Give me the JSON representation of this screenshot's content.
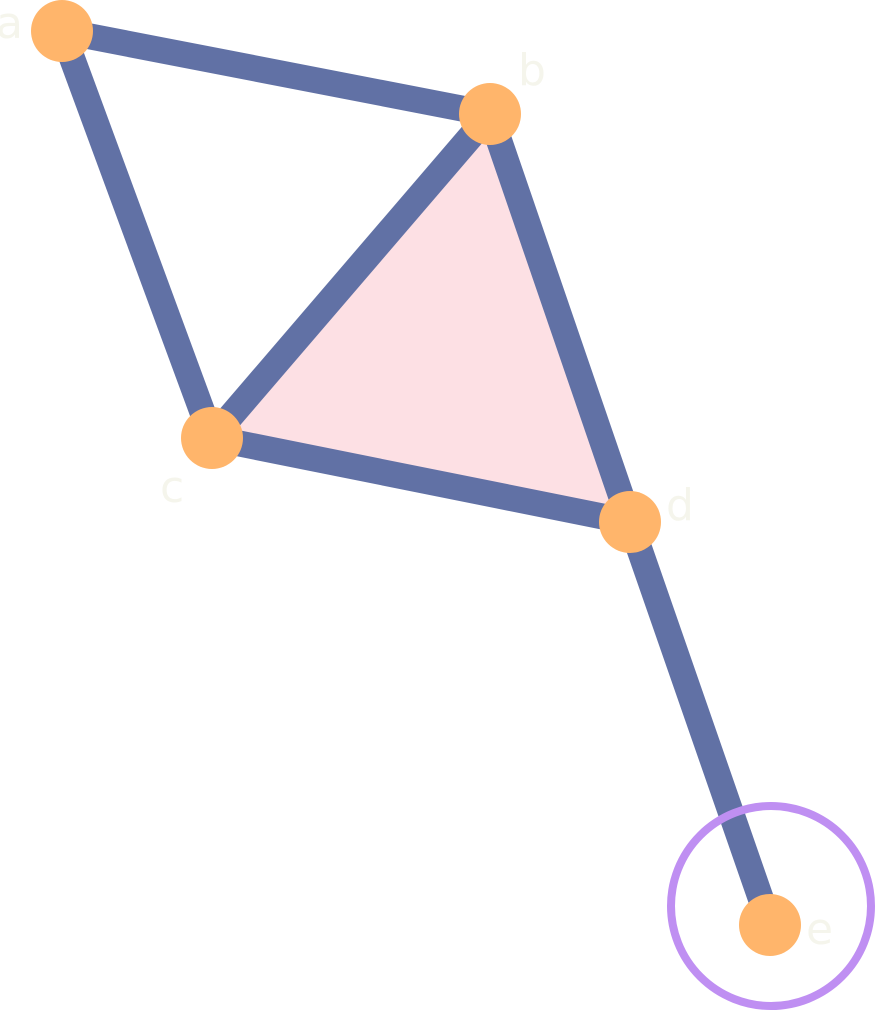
{
  "graph": {
    "nodes": [
      {
        "id": "a",
        "label": "a"
      },
      {
        "id": "b",
        "label": "b"
      },
      {
        "id": "c",
        "label": "c"
      },
      {
        "id": "d",
        "label": "d"
      },
      {
        "id": "e",
        "label": "e"
      }
    ],
    "edges": [
      {
        "from": "a",
        "to": "b"
      },
      {
        "from": "a",
        "to": "c"
      },
      {
        "from": "b",
        "to": "c"
      },
      {
        "from": "b",
        "to": "d"
      },
      {
        "from": "c",
        "to": "d"
      },
      {
        "from": "d",
        "to": "e"
      }
    ],
    "highlighted_face": [
      "b",
      "c",
      "d"
    ],
    "highlighted_node": "e",
    "colors": {
      "edge": "#6171a5",
      "node": "#ffb56b",
      "face_fill": "#fde0e4",
      "label": "#f5f5ec",
      "highlight_ring": "#bf8ff2"
    }
  }
}
